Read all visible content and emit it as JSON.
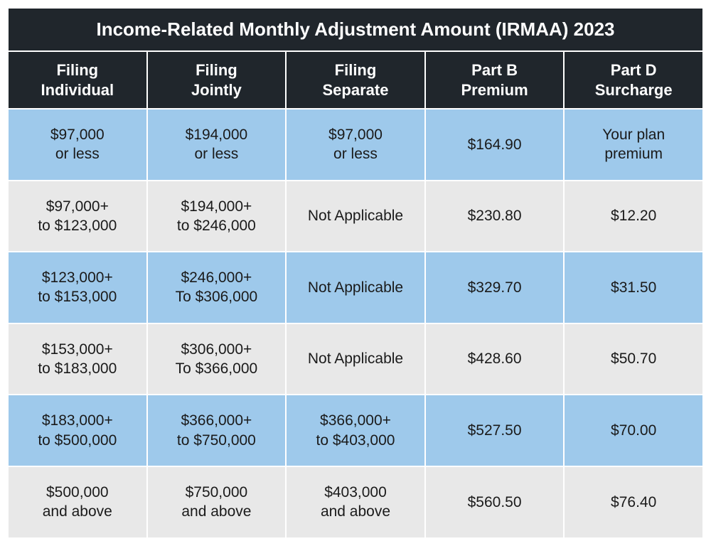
{
  "table": {
    "title": "Income-Related Monthly Adjustment Amount (IRMAA) 2023",
    "title_bg": "#20262c",
    "title_color": "#ffffff",
    "title_fontsize": 26,
    "header_bg": "#20262c",
    "header_color": "#ffffff",
    "header_fontsize": 22,
    "row_colors": {
      "blue": "#9ec9eb",
      "grey": "#e8e8e8"
    },
    "cell_fontsize": 21,
    "cell_text_color": "#1a1a1a",
    "border_color": "#ffffff",
    "columns": [
      {
        "line1": "Filing",
        "line2": "Individual"
      },
      {
        "line1": "Filing",
        "line2": "Jointly"
      },
      {
        "line1": "Filing",
        "line2": "Separate"
      },
      {
        "line1": "Part B",
        "line2": "Premium"
      },
      {
        "line1": "Part D",
        "line2": "Surcharge"
      }
    ],
    "rows": [
      {
        "shade": "blue",
        "cells": [
          {
            "line1": "$97,000",
            "line2": "or less"
          },
          {
            "line1": "$194,000",
            "line2": "or less"
          },
          {
            "line1": "$97,000",
            "line2": "or less"
          },
          {
            "line1": "$164.90"
          },
          {
            "line1": "Your plan",
            "line2": "premium"
          }
        ]
      },
      {
        "shade": "grey",
        "cells": [
          {
            "line1": "$97,000+",
            "line2": "to $123,000"
          },
          {
            "line1": "$194,000+",
            "line2": "to $246,000"
          },
          {
            "line1": "Not Applicable"
          },
          {
            "line1": "$230.80"
          },
          {
            "line1": "$12.20"
          }
        ]
      },
      {
        "shade": "blue",
        "cells": [
          {
            "line1": "$123,000+",
            "line2": "to $153,000"
          },
          {
            "line1": "$246,000+",
            "line2": "To $306,000"
          },
          {
            "line1": "Not Applicable"
          },
          {
            "line1": "$329.70"
          },
          {
            "line1": "$31.50"
          }
        ]
      },
      {
        "shade": "grey",
        "cells": [
          {
            "line1": "$153,000+",
            "line2": "to $183,000"
          },
          {
            "line1": "$306,000+",
            "line2": "To $366,000"
          },
          {
            "line1": "Not Applicable"
          },
          {
            "line1": "$428.60"
          },
          {
            "line1": "$50.70"
          }
        ]
      },
      {
        "shade": "blue",
        "cells": [
          {
            "line1": "$183,000+",
            "line2": "to $500,000"
          },
          {
            "line1": "$366,000+",
            "line2": "to $750,000"
          },
          {
            "line1": "$366,000+",
            "line2": "to $403,000"
          },
          {
            "line1": "$527.50"
          },
          {
            "line1": "$70.00"
          }
        ]
      },
      {
        "shade": "grey",
        "cells": [
          {
            "line1": "$500,000",
            "line2": "and above"
          },
          {
            "line1": "$750,000",
            "line2": "and above"
          },
          {
            "line1": "$403,000",
            "line2": "and above"
          },
          {
            "line1": "$560.50"
          },
          {
            "line1": "$76.40"
          }
        ]
      }
    ]
  }
}
